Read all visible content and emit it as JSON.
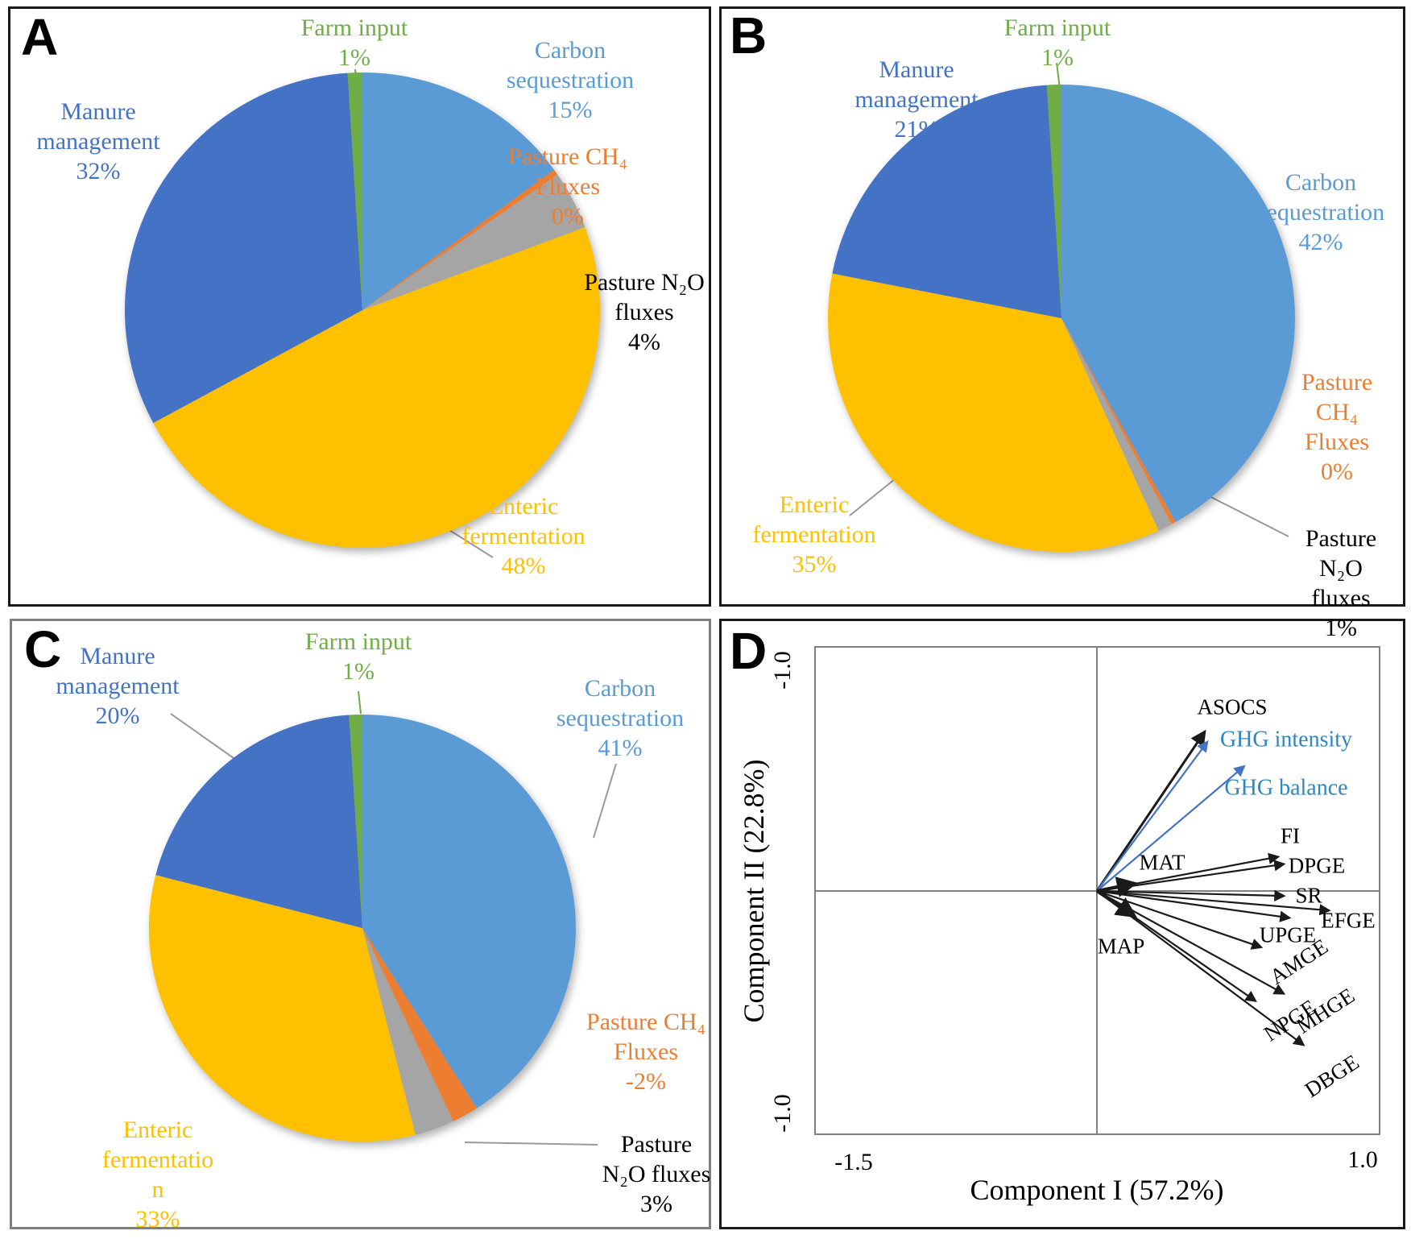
{
  "figure": {
    "panel_letters": {
      "a": "A",
      "b": "B",
      "c": "C",
      "d": "D"
    }
  },
  "labels": {
    "a": {
      "farm": "Farm input\n1%",
      "carbon": "Carbon\nsequestration\n15%",
      "ch4": "Pasture CH₄\nFluxes\n0%",
      "n2o": "Pasture N₂O\nfluxes\n4%",
      "enteric": "Enteric\nfermentation\n48%",
      "manure": "Manure\nmanagement\n32%"
    },
    "b": {
      "farm": "Farm input\n1%",
      "manure": "Manure\nmanagement\n21%",
      "carbon": "Carbon\nsequestration\n42%",
      "ch4": "Pasture\nCH₄ Fluxes\n0%",
      "n2o": "Pasture\nN₂O fluxes\n1%",
      "enteric": "Enteric\nfermentation\n35%"
    },
    "c": {
      "farm": "Farm input\n1%",
      "manure": "Manure\nmanagement\n20%",
      "carbon": "Carbon\nsequestration\n41%",
      "ch4": "Pasture CH₄\nFluxes\n-2%",
      "n2o": "Pasture\nN₂O fluxes\n3%",
      "enteric": "Enteric\nfermentatio\nn\n33%"
    }
  },
  "chart_data": [
    {
      "id": "A",
      "type": "pie",
      "start_angle_deg": 0,
      "direction": "clockwise",
      "slices": [
        {
          "key": "carbon",
          "label": "Carbon sequestration",
          "pct_label": "15%",
          "value": 15,
          "color": "#5B9BD5",
          "label_color": "#5B9BD5"
        },
        {
          "key": "ch4",
          "label": "Pasture CH₄ Fluxes",
          "pct_label": "0%",
          "value": 0,
          "draw_value": 0.4,
          "color": "#ED7D31",
          "label_color": "#ED7D31"
        },
        {
          "key": "n2o",
          "label": "Pasture N₂O fluxes",
          "pct_label": "4%",
          "value": 4,
          "color": "#A5A5A5",
          "label_color": "#000000"
        },
        {
          "key": "enteric",
          "label": "Enteric fermentation",
          "pct_label": "48%",
          "value": 48,
          "color": "#FFC000",
          "label_color": "#FFC000"
        },
        {
          "key": "manure",
          "label": "Manure management",
          "pct_label": "32%",
          "value": 32,
          "color": "#4472C4",
          "label_color": "#4472C4"
        },
        {
          "key": "farm",
          "label": "Farm input",
          "pct_label": "1%",
          "value": 1,
          "color": "#70AD47",
          "label_color": "#70AD47"
        }
      ]
    },
    {
      "id": "B",
      "type": "pie",
      "start_angle_deg": 0,
      "direction": "clockwise",
      "slices": [
        {
          "key": "carbon",
          "label": "Carbon sequestration",
          "pct_label": "42%",
          "value": 42,
          "color": "#5B9BD5",
          "label_color": "#5B9BD5"
        },
        {
          "key": "ch4",
          "label": "Pasture CH₄ Fluxes",
          "pct_label": "0%",
          "value": 0,
          "draw_value": 0.3,
          "color": "#ED7D31",
          "label_color": "#ED7D31"
        },
        {
          "key": "n2o",
          "label": "Pasture N₂O fluxes",
          "pct_label": "1%",
          "value": 1,
          "color": "#A5A5A5",
          "label_color": "#000000"
        },
        {
          "key": "enteric",
          "label": "Enteric fermentation",
          "pct_label": "35%",
          "value": 35,
          "color": "#FFC000",
          "label_color": "#FFC000"
        },
        {
          "key": "manure",
          "label": "Manure management",
          "pct_label": "21%",
          "value": 21,
          "color": "#4472C4",
          "label_color": "#4472C4"
        },
        {
          "key": "farm",
          "label": "Farm input",
          "pct_label": "1%",
          "value": 1,
          "color": "#70AD47",
          "label_color": "#70AD47"
        }
      ]
    },
    {
      "id": "C",
      "type": "pie",
      "start_angle_deg": 0,
      "direction": "clockwise",
      "slices": [
        {
          "key": "carbon",
          "label": "Carbon sequestration",
          "pct_label": "41%",
          "value": 41,
          "color": "#5B9BD5",
          "label_color": "#5B9BD5"
        },
        {
          "key": "ch4",
          "label": "Pasture CH₄ Fluxes",
          "pct_label": "-2%",
          "value": -2,
          "draw_value": 2,
          "color": "#ED7D31",
          "label_color": "#ED7D31"
        },
        {
          "key": "n2o",
          "label": "Pasture N₂O fluxes",
          "pct_label": "3%",
          "value": 3,
          "color": "#A5A5A5",
          "label_color": "#000000"
        },
        {
          "key": "enteric",
          "label": "Enteric fermentation",
          "pct_label": "33%",
          "value": 33,
          "color": "#FFC000",
          "label_color": "#FFC000"
        },
        {
          "key": "manure",
          "label": "Manure management",
          "pct_label": "20%",
          "value": 20,
          "color": "#4472C4",
          "label_color": "#4472C4"
        },
        {
          "key": "farm",
          "label": "Farm input",
          "pct_label": "1%",
          "value": 1,
          "color": "#70AD47",
          "label_color": "#70AD47"
        }
      ]
    },
    {
      "id": "D",
      "type": "biplot",
      "xlabel": "Component I (57.2%)",
      "ylabel": "Component II (22.8%)",
      "xticks": [
        "-1.5",
        "1.0"
      ],
      "yticks": [
        "-1.0",
        "-1.0"
      ],
      "xlim": [
        -1.5,
        1.0
      ],
      "vectors": [
        {
          "name": "ASOCS",
          "x": 0.38,
          "y": 0.65,
          "color": "#1a1a1a"
        },
        {
          "name": "GHG intensity",
          "x": 0.39,
          "y": 0.61,
          "color": "#4472C4",
          "label_color": "#2E86C1"
        },
        {
          "name": "GHG balance",
          "x": 0.52,
          "y": 0.51,
          "color": "#4472C4",
          "label_color": "#2E86C1"
        },
        {
          "name": "FI",
          "x": 0.64,
          "y": 0.14,
          "color": "#1a1a1a"
        },
        {
          "name": "DPGE",
          "x": 0.66,
          "y": 0.11,
          "color": "#1a1a1a"
        },
        {
          "name": "MAT",
          "x": 0.13,
          "y": 0.03,
          "color": "#1a1a1a"
        },
        {
          "name": "SR",
          "x": 0.66,
          "y": -0.02,
          "color": "#1a1a1a"
        },
        {
          "name": "EFGE",
          "x": 0.82,
          "y": -0.08,
          "color": "#1a1a1a"
        },
        {
          "name": "UPGE",
          "x": 0.68,
          "y": -0.11,
          "color": "#1a1a1a"
        },
        {
          "name": "AMGE",
          "x": 0.58,
          "y": -0.23,
          "color": "#1a1a1a"
        },
        {
          "name": "MHGE",
          "x": 0.66,
          "y": -0.42,
          "color": "#1a1a1a"
        },
        {
          "name": "NPGE",
          "x": 0.56,
          "y": -0.45,
          "color": "#1a1a1a"
        },
        {
          "name": "DBGE",
          "x": 0.73,
          "y": -0.63,
          "color": "#1a1a1a"
        },
        {
          "name": "MAP",
          "x": 0.13,
          "y": -0.1,
          "color": "#1a1a1a"
        }
      ]
    }
  ]
}
